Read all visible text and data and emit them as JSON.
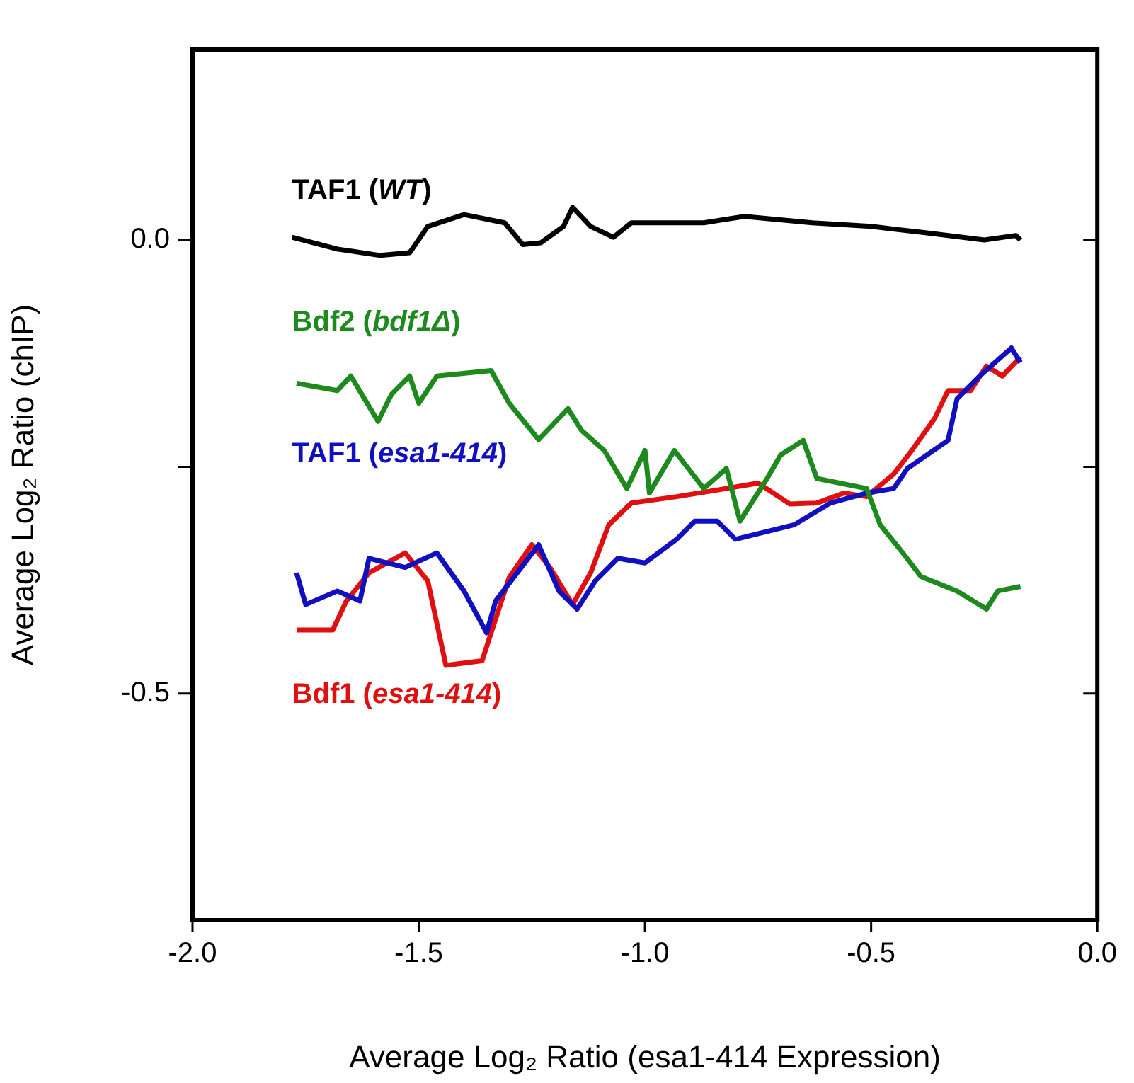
{
  "chart_data": {
    "type": "line",
    "xlabel": "Average Log₂ Ratio (esa1-414 Expression)",
    "ylabel": "Average Log₂ Ratio (chIP)",
    "xlim": [
      -2.0,
      0.0
    ],
    "xticks": [
      {
        "value": -2.0,
        "label": "-2.0"
      },
      {
        "value": -1.5,
        "label": "-1.5"
      },
      {
        "value": -1.0,
        "label": "-1.0"
      },
      {
        "value": -0.5,
        "label": "-0.5"
      },
      {
        "value": 0.0,
        "label": "0.0"
      }
    ],
    "ylim": [
      -0.75,
      0.21
    ],
    "yticks": [
      {
        "value": 0.0,
        "label": "0.0"
      },
      {
        "value": -0.25,
        "label": null
      },
      {
        "value": -0.5,
        "label": "-0.5"
      }
    ],
    "grid": false,
    "legend": false,
    "marker": "none",
    "line_style": "solid",
    "series": [
      {
        "name": "TAF1 (WT)",
        "color": "#000000",
        "x": [
          -1.78,
          -1.68,
          -1.585,
          -1.52,
          -1.48,
          -1.4,
          -1.31,
          -1.27,
          -1.23,
          -1.18,
          -1.16,
          -1.12,
          -1.07,
          -1.03,
          -0.87,
          -0.78,
          -0.63,
          -0.5,
          -0.38,
          -0.25,
          -0.18,
          -0.17
        ],
        "values": [
          0.003,
          -0.01,
          -0.017,
          -0.014,
          0.015,
          0.028,
          0.019,
          -0.005,
          -0.003,
          0.015,
          0.036,
          0.015,
          0.003,
          0.019,
          0.019,
          0.026,
          0.019,
          0.015,
          0.008,
          0.0,
          0.005,
          0.0
        ]
      },
      {
        "name": "Bdf2 (bdf1Δ)",
        "color": "#1e8a1e",
        "x": [
          -1.77,
          -1.68,
          -1.65,
          -1.59,
          -1.56,
          -1.52,
          -1.5,
          -1.46,
          -1.34,
          -1.3,
          -1.235,
          -1.17,
          -1.14,
          -1.09,
          -1.04,
          -1.0,
          -0.99,
          -0.935,
          -0.87,
          -0.82,
          -0.79,
          -0.73,
          -0.7,
          -0.65,
          -0.62,
          -0.51,
          -0.48,
          -0.43,
          -0.39,
          -0.31,
          -0.245,
          -0.22,
          -0.17
        ],
        "values": [
          -0.158,
          -0.166,
          -0.15,
          -0.2,
          -0.17,
          -0.15,
          -0.18,
          -0.15,
          -0.144,
          -0.18,
          -0.22,
          -0.186,
          -0.21,
          -0.232,
          -0.274,
          -0.232,
          -0.279,
          -0.232,
          -0.274,
          -0.252,
          -0.31,
          -0.263,
          -0.237,
          -0.221,
          -0.263,
          -0.274,
          -0.314,
          -0.345,
          -0.371,
          -0.387,
          -0.407,
          -0.387,
          -0.382
        ]
      },
      {
        "name": "TAF1 (esa1-414)",
        "color": "#1010c0",
        "x": [
          -1.77,
          -1.75,
          -1.68,
          -1.63,
          -1.61,
          -1.53,
          -1.46,
          -1.4,
          -1.35,
          -1.33,
          -1.235,
          -1.19,
          -1.15,
          -1.11,
          -1.06,
          -1.0,
          -0.93,
          -0.89,
          -0.84,
          -0.8,
          -0.67,
          -0.59,
          -0.51,
          -0.45,
          -0.42,
          -0.33,
          -0.31,
          -0.26,
          -0.19,
          -0.17
        ],
        "values": [
          -0.367,
          -0.402,
          -0.387,
          -0.398,
          -0.351,
          -0.361,
          -0.345,
          -0.387,
          -0.433,
          -0.398,
          -0.336,
          -0.387,
          -0.407,
          -0.376,
          -0.351,
          -0.356,
          -0.33,
          -0.31,
          -0.31,
          -0.33,
          -0.314,
          -0.29,
          -0.279,
          -0.274,
          -0.252,
          -0.221,
          -0.175,
          -0.15,
          -0.119,
          -0.135
        ]
      },
      {
        "name": "Bdf1 (esa1-414)",
        "color": "#e01010",
        "x": [
          -1.77,
          -1.69,
          -1.66,
          -1.61,
          -1.53,
          -1.48,
          -1.44,
          -1.36,
          -1.34,
          -1.3,
          -1.25,
          -1.21,
          -1.16,
          -1.12,
          -1.08,
          -1.03,
          -0.93,
          -0.82,
          -0.75,
          -0.68,
          -0.62,
          -0.56,
          -0.51,
          -0.45,
          -0.41,
          -0.36,
          -0.33,
          -0.28,
          -0.245,
          -0.21,
          -0.17
        ],
        "values": [
          -0.43,
          -0.43,
          -0.398,
          -0.367,
          -0.345,
          -0.376,
          -0.469,
          -0.464,
          -0.433,
          -0.372,
          -0.336,
          -0.361,
          -0.402,
          -0.367,
          -0.314,
          -0.29,
          -0.283,
          -0.274,
          -0.268,
          -0.291,
          -0.29,
          -0.279,
          -0.283,
          -0.258,
          -0.232,
          -0.197,
          -0.166,
          -0.166,
          -0.139,
          -0.15,
          -0.129
        ]
      }
    ]
  }
}
